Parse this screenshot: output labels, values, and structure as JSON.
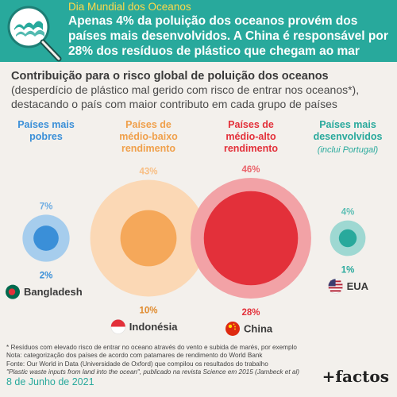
{
  "header": {
    "kicker": "Dia Mundial dos Oceanos",
    "title": "Apenas 4% da poluição dos oceanos provém dos países mais desenvolvidos. A China é responsável por 28% dos resíduos de plástico que chegam ao mar"
  },
  "intro": {
    "title": "Contribuição para o risco global de poluição dos oceanos",
    "subtitle": "(desperdício de plástico mal gerido com risco de entrar nos oceanos*), destacando o país com maior contributo em cada grupo de países"
  },
  "colors": {
    "teal": "#28a99c",
    "yellow": "#ffd84a",
    "blue": "#3a8fd8",
    "orange": "#f5a85a",
    "red": "#e3303a"
  },
  "chart_data": {
    "type": "bubble",
    "groups": [
      {
        "name_lines": [
          "Países mais",
          "pobres"
        ],
        "note": "",
        "group_pct": 7,
        "group_label": "7%",
        "country": "Bangladesh",
        "country_pct": 2,
        "country_label": "2%",
        "color": "#3a8fd8",
        "flag_icon": "bangladesh-flag-icon"
      },
      {
        "name_lines": [
          "Países de",
          "médio-baixo",
          "rendimento"
        ],
        "note": "",
        "group_pct": 43,
        "group_label": "43%",
        "country": "Indonésia",
        "country_pct": 10,
        "country_label": "10%",
        "color": "#f5a85a",
        "flag_icon": "indonesia-flag-icon"
      },
      {
        "name_lines": [
          "Países de",
          "médio-alto",
          "rendimento"
        ],
        "note": "",
        "group_pct": 46,
        "group_label": "46%",
        "country": "China",
        "country_pct": 28,
        "country_label": "28%",
        "color": "#e3303a",
        "flag_icon": "china-flag-icon"
      },
      {
        "name_lines": [
          "Países mais",
          "desenvolvidos"
        ],
        "note": "(inclui Portugal)",
        "group_pct": 4,
        "group_label": "4%",
        "country": "EUA",
        "country_pct": 1,
        "country_label": "1%",
        "color": "#28a99c",
        "flag_icon": "usa-flag-icon"
      }
    ]
  },
  "footnotes": [
    "* Resíduos com elevado risco de entrar no oceano através do vento e subida de marés, por exemplo",
    "Nota: categorização dos países de acordo com patamares de rendimento do World Bank",
    "Fonte: Our World in Data (Universidade de Oxford) que compilou os resultados do trabalho",
    "\"Plastic waste inputs from land into the ocean\", publicado na revista Science em 2015 (Jambeck et al)"
  ],
  "date": "8 de Junho de 2021",
  "brand": "+factos"
}
